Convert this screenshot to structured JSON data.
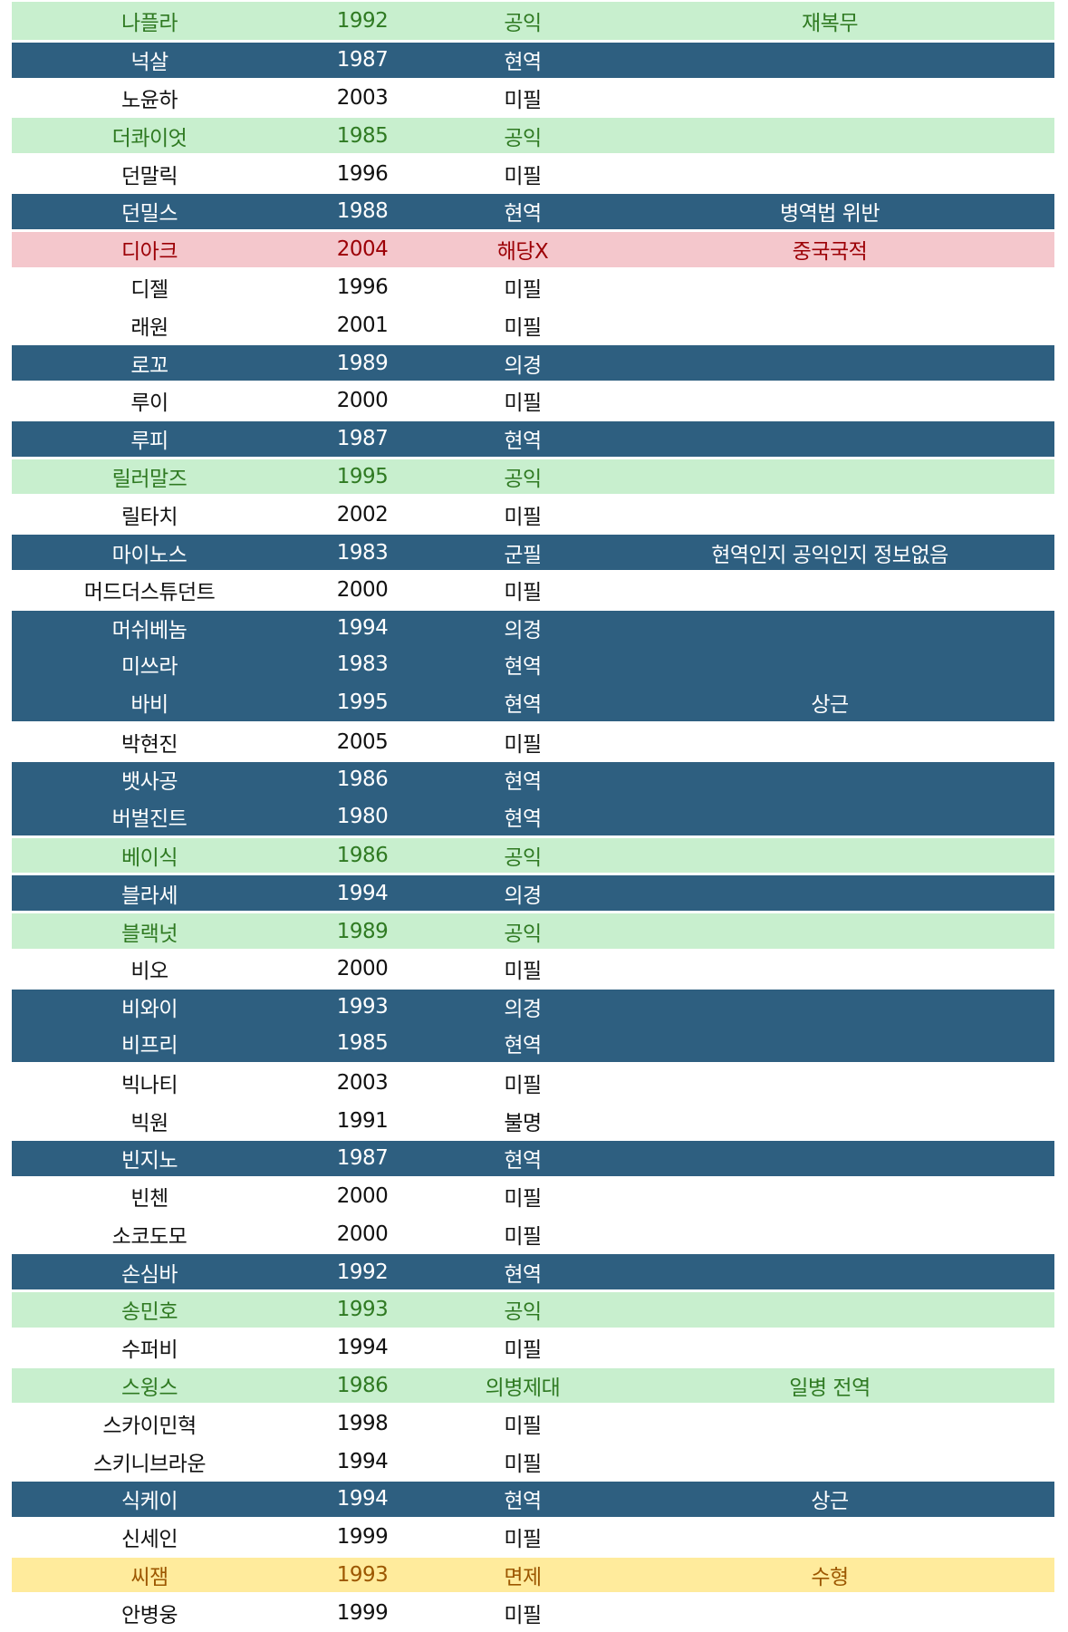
{
  "colors": {
    "blue": "#2e5f80",
    "green": "#c8efce",
    "pink": "#f4c7cc",
    "yellow": "#ffeb9c"
  },
  "rows": [
    {
      "name": "나플라",
      "year": "1992",
      "status": "공익",
      "note": "재복무",
      "style": "green"
    },
    {
      "name": "넉살",
      "year": "1987",
      "status": "현역",
      "note": "",
      "style": "blue"
    },
    {
      "name": "노윤하",
      "year": "2003",
      "status": "미필",
      "note": "",
      "style": "none"
    },
    {
      "name": "더콰이엇",
      "year": "1985",
      "status": "공익",
      "note": "",
      "style": "green"
    },
    {
      "name": "던말릭",
      "year": "1996",
      "status": "미필",
      "note": "",
      "style": "none"
    },
    {
      "name": "던밀스",
      "year": "1988",
      "status": "현역",
      "note": "병역법 위반",
      "style": "blue"
    },
    {
      "name": "디아크",
      "year": "2004",
      "status": "해당X",
      "note": "중국국적",
      "style": "pink"
    },
    {
      "name": "디젤",
      "year": "1996",
      "status": "미필",
      "note": "",
      "style": "none"
    },
    {
      "name": "래원",
      "year": "2001",
      "status": "미필",
      "note": "",
      "style": "none"
    },
    {
      "name": "로꼬",
      "year": "1989",
      "status": "의경",
      "note": "",
      "style": "blue"
    },
    {
      "name": "루이",
      "year": "2000",
      "status": "미필",
      "note": "",
      "style": "none"
    },
    {
      "name": "루피",
      "year": "1987",
      "status": "현역",
      "note": "",
      "style": "blue"
    },
    {
      "name": "릴러말즈",
      "year": "1995",
      "status": "공익",
      "note": "",
      "style": "green"
    },
    {
      "name": "릴타치",
      "year": "2002",
      "status": "미필",
      "note": "",
      "style": "none"
    },
    {
      "name": "마이노스",
      "year": "1983",
      "status": "군필",
      "note": "현역인지 공익인지 정보없음",
      "style": "blue"
    },
    {
      "name": "머드더스튜던트",
      "year": "2000",
      "status": "미필",
      "note": "",
      "style": "none"
    },
    {
      "name": "머쉬베놈",
      "year": "1994",
      "status": "의경",
      "note": "",
      "style": "blue"
    },
    {
      "name": "미쓰라",
      "year": "1983",
      "status": "현역",
      "note": "",
      "style": "blue"
    },
    {
      "name": "바비",
      "year": "1995",
      "status": "현역",
      "note": "상근",
      "style": "blue"
    },
    {
      "name": "박현진",
      "year": "2005",
      "status": "미필",
      "note": "",
      "style": "none"
    },
    {
      "name": "뱃사공",
      "year": "1986",
      "status": "현역",
      "note": "",
      "style": "blue"
    },
    {
      "name": "버벌진트",
      "year": "1980",
      "status": "현역",
      "note": "",
      "style": "blue"
    },
    {
      "name": "베이식",
      "year": "1986",
      "status": "공익",
      "note": "",
      "style": "green"
    },
    {
      "name": "블라세",
      "year": "1994",
      "status": "의경",
      "note": "",
      "style": "blue"
    },
    {
      "name": "블랙넛",
      "year": "1989",
      "status": "공익",
      "note": "",
      "style": "green"
    },
    {
      "name": "비오",
      "year": "2000",
      "status": "미필",
      "note": "",
      "style": "none"
    },
    {
      "name": "비와이",
      "year": "1993",
      "status": "의경",
      "note": "",
      "style": "blue"
    },
    {
      "name": "비프리",
      "year": "1985",
      "status": "현역",
      "note": "",
      "style": "blue"
    },
    {
      "name": "빅나티",
      "year": "2003",
      "status": "미필",
      "note": "",
      "style": "none"
    },
    {
      "name": "빅원",
      "year": "1991",
      "status": "불명",
      "note": "",
      "style": "none"
    },
    {
      "name": "빈지노",
      "year": "1987",
      "status": "현역",
      "note": "",
      "style": "blue"
    },
    {
      "name": "빈첸",
      "year": "2000",
      "status": "미필",
      "note": "",
      "style": "none"
    },
    {
      "name": "소코도모",
      "year": "2000",
      "status": "미필",
      "note": "",
      "style": "none"
    },
    {
      "name": "손심바",
      "year": "1992",
      "status": "현역",
      "note": "",
      "style": "blue"
    },
    {
      "name": "송민호",
      "year": "1993",
      "status": "공익",
      "note": "",
      "style": "green"
    },
    {
      "name": "수퍼비",
      "year": "1994",
      "status": "미필",
      "note": "",
      "style": "none"
    },
    {
      "name": "스윙스",
      "year": "1986",
      "status": "의병제대",
      "note": "일병 전역",
      "style": "green"
    },
    {
      "name": "스카이민혁",
      "year": "1998",
      "status": "미필",
      "note": "",
      "style": "none"
    },
    {
      "name": "스키니브라운",
      "year": "1994",
      "status": "미필",
      "note": "",
      "style": "none"
    },
    {
      "name": "식케이",
      "year": "1994",
      "status": "현역",
      "note": "상근",
      "style": "blue"
    },
    {
      "name": "신세인",
      "year": "1999",
      "status": "미필",
      "note": "",
      "style": "none"
    },
    {
      "name": "씨잼",
      "year": "1993",
      "status": "면제",
      "note": "수형",
      "style": "yellow"
    },
    {
      "name": "안병웅",
      "year": "1999",
      "status": "미필",
      "note": "",
      "style": "none"
    }
  ]
}
